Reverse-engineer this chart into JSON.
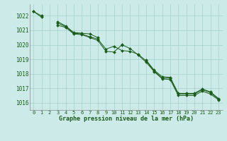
{
  "title": "Graphe pression niveau de la mer (hPa)",
  "background_color": "#cceae7",
  "grid_color": "#aad4d0",
  "line_color": "#1a5c1a",
  "marker_color": "#1a5c1a",
  "xlim": [
    -0.5,
    23.5
  ],
  "ylim": [
    1015.5,
    1022.8
  ],
  "yticks": [
    1016,
    1017,
    1018,
    1019,
    1020,
    1021,
    1022
  ],
  "xticks": [
    0,
    1,
    2,
    3,
    4,
    5,
    6,
    7,
    8,
    9,
    10,
    11,
    12,
    13,
    14,
    15,
    16,
    17,
    18,
    19,
    20,
    21,
    22,
    23
  ],
  "series1": [
    1022.3,
    1022.0,
    null,
    1021.35,
    1021.2,
    1020.75,
    1020.7,
    1020.5,
    1020.3,
    1019.55,
    1019.5,
    1020.0,
    1019.75,
    1019.3,
    1018.8,
    1018.15,
    1017.65,
    1017.6,
    1016.5,
    1016.5,
    1016.5,
    1016.8,
    1016.6,
    1016.2
  ],
  "series2": [
    1022.3,
    1021.9,
    null,
    1021.5,
    1021.25,
    1020.8,
    1020.75,
    1020.55,
    1020.4,
    1019.7,
    1019.9,
    1019.6,
    1019.55,
    1019.35,
    1018.9,
    1018.2,
    1017.7,
    1017.7,
    1016.6,
    1016.6,
    1016.6,
    1016.9,
    1016.7,
    1016.25
  ],
  "series3": [
    1022.3,
    null,
    null,
    1021.6,
    1021.3,
    1020.85,
    1020.8,
    1020.75,
    1020.5,
    null,
    null,
    1020.05,
    null,
    null,
    1018.95,
    1018.25,
    1017.8,
    1017.75,
    1016.65,
    1016.65,
    1016.65,
    1016.95,
    1016.75,
    1016.3
  ]
}
